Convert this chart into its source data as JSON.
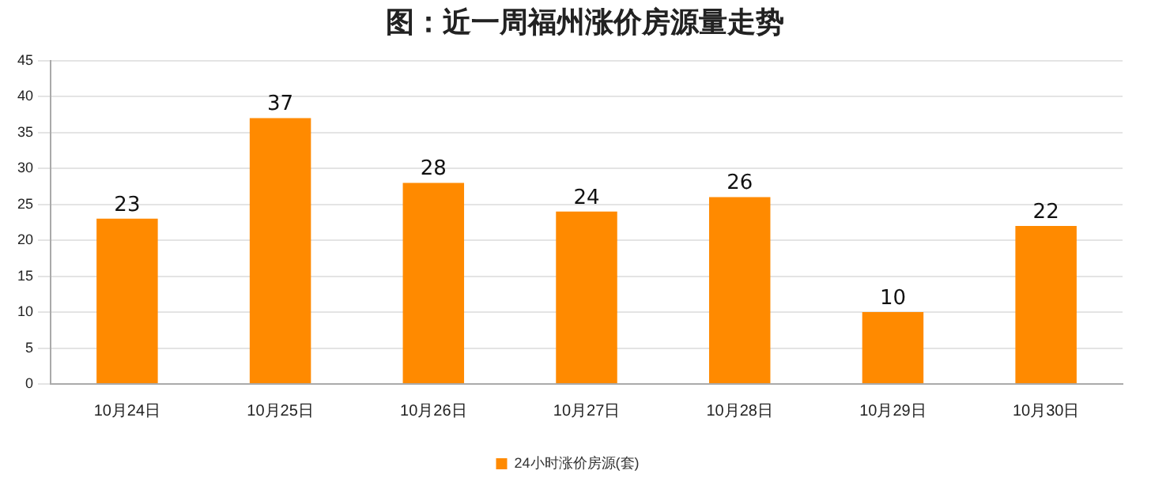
{
  "chart_data": {
    "type": "bar",
    "title": "图：近一周福州涨价房源量走势",
    "categories": [
      "10月24日",
      "10月25日",
      "10月26日",
      "10月27日",
      "10月28日",
      "10月29日",
      "10月30日"
    ],
    "series": [
      {
        "name": "24小时涨价房源(套)",
        "color": "#ff8a00",
        "values": [
          23,
          37,
          28,
          24,
          26,
          10,
          22
        ]
      }
    ],
    "ylim": [
      0,
      45
    ],
    "yticks": [
      0,
      5,
      10,
      15,
      20,
      25,
      30,
      35,
      40,
      45
    ],
    "grid": "y",
    "legend": "bottom",
    "data_labels": true
  }
}
